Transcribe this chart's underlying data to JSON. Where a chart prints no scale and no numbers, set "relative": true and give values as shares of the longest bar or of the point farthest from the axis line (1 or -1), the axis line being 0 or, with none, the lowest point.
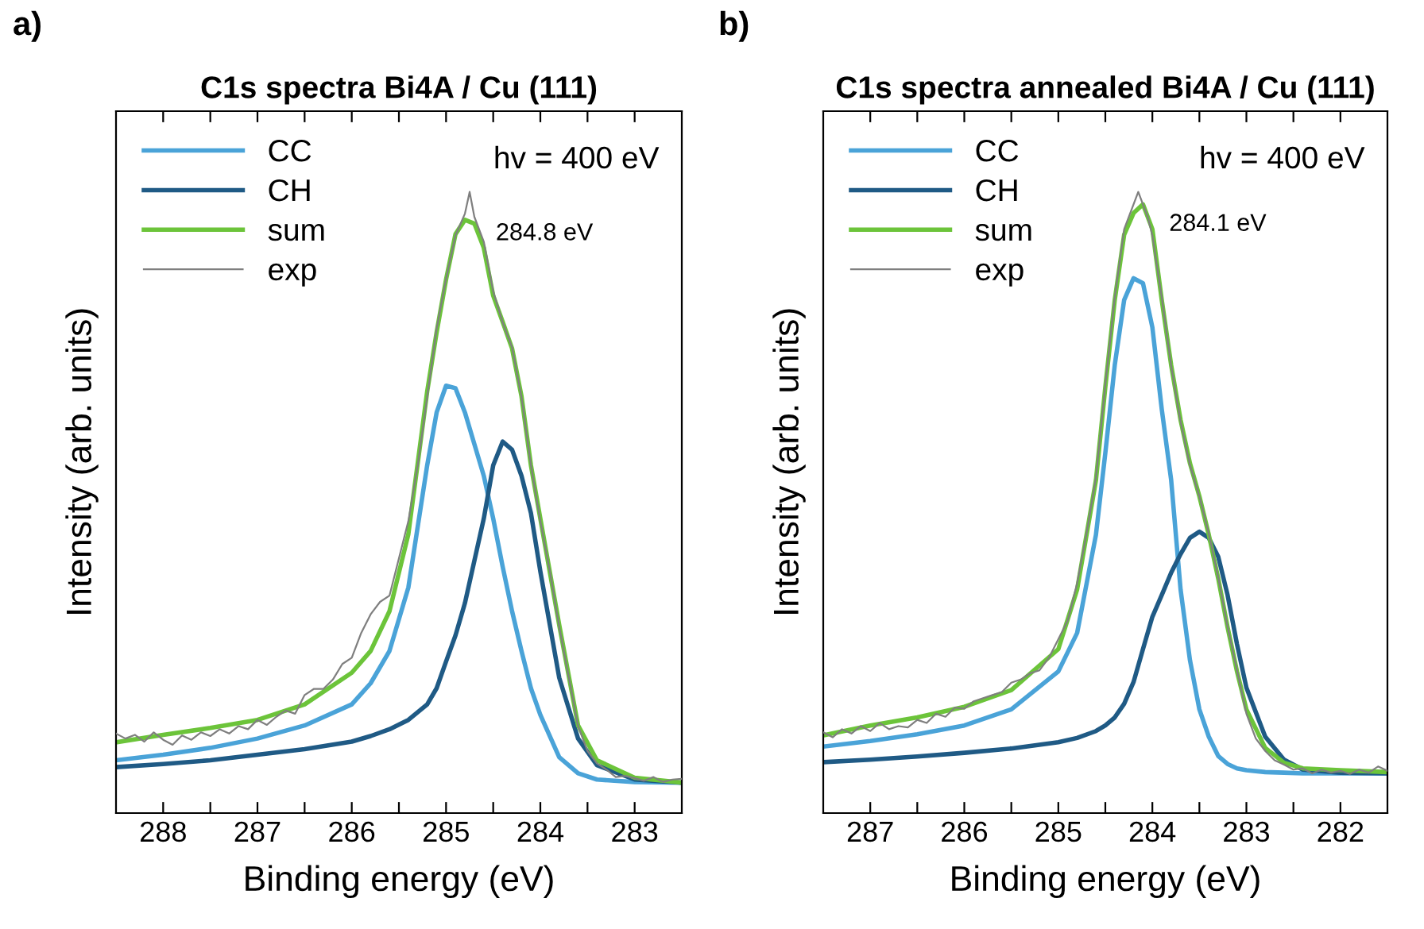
{
  "chart_data": [
    {
      "type": "line",
      "title": "C1s spectra Bi4A / Cu (111)",
      "xlabel": "Binding energy (eV)",
      "ylabel": "Intensity (arb. units)",
      "relative": true,
      "legend": "top left",
      "grid": false,
      "marker": "none",
      "line_style": "solid",
      "tick_labels": "x",
      "xlim": [
        288.5,
        282.5
      ],
      "xticks": [
        288,
        {
          "value": 287.5,
          "label": null
        },
        287,
        {
          "value": 286.5,
          "label": null
        },
        286,
        {
          "value": 285.5,
          "label": null
        },
        285,
        {
          "value": 284.5,
          "label": null
        },
        284,
        {
          "value": 283.5,
          "label": null
        },
        283
      ],
      "annotations": [
        "a)",
        "hv = 400 eV",
        {
          "text": "284.8 eV",
          "x": 284.8,
          "y": 0.965
        }
      ],
      "series": [
        {
          "name": "CC",
          "color": "#4aa3d8",
          "x": [
            288.5,
            288.0,
            287.5,
            287.0,
            286.5,
            286.0,
            285.8,
            285.6,
            285.4,
            285.2,
            285.1,
            285.0,
            284.9,
            284.8,
            284.7,
            284.6,
            284.5,
            284.4,
            284.3,
            284.2,
            284.1,
            284.0,
            283.8,
            283.6,
            283.4,
            283.0,
            282.5
          ],
          "values": [
            0.085,
            0.094,
            0.105,
            0.12,
            0.141,
            0.175,
            0.209,
            0.261,
            0.363,
            0.56,
            0.645,
            0.688,
            0.684,
            0.645,
            0.594,
            0.543,
            0.474,
            0.397,
            0.325,
            0.261,
            0.201,
            0.158,
            0.09,
            0.064,
            0.054,
            0.05,
            0.049
          ]
        },
        {
          "name": "CH",
          "color": "#1f5a85",
          "x": [
            288.5,
            288.0,
            287.5,
            287.0,
            286.5,
            286.0,
            285.8,
            285.6,
            285.4,
            285.2,
            285.1,
            285.0,
            284.9,
            284.8,
            284.7,
            284.6,
            284.5,
            284.4,
            284.3,
            284.2,
            284.1,
            284.0,
            283.8,
            283.6,
            283.4,
            283.0,
            282.5
          ],
          "values": [
            0.074,
            0.079,
            0.085,
            0.094,
            0.103,
            0.115,
            0.124,
            0.135,
            0.15,
            0.175,
            0.201,
            0.244,
            0.286,
            0.338,
            0.406,
            0.474,
            0.56,
            0.598,
            0.585,
            0.543,
            0.483,
            0.389,
            0.218,
            0.12,
            0.077,
            0.054,
            0.049
          ]
        },
        {
          "name": "sum",
          "color": "#6cc43a",
          "x": [
            288.5,
            288.0,
            287.5,
            287.0,
            286.5,
            286.0,
            285.8,
            285.6,
            285.4,
            285.2,
            285.1,
            285.0,
            284.9,
            284.8,
            284.7,
            284.6,
            284.5,
            284.4,
            284.3,
            284.2,
            284.1,
            284.0,
            283.8,
            283.6,
            283.4,
            283.0,
            282.5
          ],
          "values": [
            0.114,
            0.126,
            0.137,
            0.15,
            0.175,
            0.226,
            0.261,
            0.325,
            0.449,
            0.679,
            0.774,
            0.859,
            0.932,
            0.955,
            0.949,
            0.91,
            0.833,
            0.791,
            0.748,
            0.671,
            0.56,
            0.474,
            0.303,
            0.141,
            0.085,
            0.057,
            0.049
          ]
        },
        {
          "name": "exp",
          "color": "#7f7f7f",
          "x": [
            288.5,
            288.4,
            288.3,
            288.2,
            288.1,
            288.0,
            287.9,
            287.8,
            287.7,
            287.6,
            287.5,
            287.4,
            287.3,
            287.2,
            287.1,
            287.0,
            286.9,
            286.8,
            286.7,
            286.6,
            286.5,
            286.4,
            286.3,
            286.2,
            286.1,
            286.0,
            285.9,
            285.8,
            285.7,
            285.6,
            285.5,
            285.4,
            285.3,
            285.2,
            285.1,
            285.0,
            284.9,
            284.8,
            284.75,
            284.7,
            284.6,
            284.5,
            284.4,
            284.3,
            284.2,
            284.1,
            284.0,
            283.9,
            283.8,
            283.7,
            283.6,
            283.5,
            283.4,
            283.3,
            283.2,
            283.1,
            283.0,
            282.9,
            282.8,
            282.7,
            282.6,
            282.5
          ],
          "values": [
            0.128,
            0.12,
            0.126,
            0.115,
            0.13,
            0.118,
            0.11,
            0.125,
            0.118,
            0.13,
            0.124,
            0.135,
            0.128,
            0.14,
            0.135,
            0.15,
            0.142,
            0.155,
            0.165,
            0.16,
            0.19,
            0.2,
            0.2,
            0.215,
            0.24,
            0.25,
            0.29,
            0.32,
            0.34,
            0.35,
            0.41,
            0.47,
            0.56,
            0.67,
            0.78,
            0.86,
            0.93,
            0.965,
            1.0,
            0.96,
            0.92,
            0.84,
            0.79,
            0.75,
            0.67,
            0.56,
            0.47,
            0.39,
            0.3,
            0.22,
            0.14,
            0.1,
            0.08,
            0.07,
            0.058,
            0.06,
            0.056,
            0.052,
            0.058,
            0.05,
            0.054,
            0.055
          ]
        }
      ]
    },
    {
      "type": "line",
      "title": "C1s spectra annealed Bi4A / Cu (111)",
      "xlabel": "Binding energy (eV)",
      "ylabel": "Intensity (arb. units)",
      "relative": true,
      "legend": "top left",
      "grid": false,
      "marker": "none",
      "line_style": "solid",
      "tick_labels": "x",
      "xlim": [
        287.5,
        281.5
      ],
      "xticks": [
        287,
        {
          "value": 286.5,
          "label": null
        },
        286,
        {
          "value": 285.5,
          "label": null
        },
        285,
        {
          "value": 284.5,
          "label": null
        },
        284,
        {
          "value": 283.5,
          "label": null
        },
        283,
        {
          "value": 282.5,
          "label": null
        },
        282
      ],
      "annotations": [
        "b)",
        "hv = 400 eV",
        {
          "text": "284.1 eV",
          "x": 284.15,
          "y": 0.98
        }
      ],
      "series": [
        {
          "name": "CC",
          "color": "#4aa3d8",
          "x": [
            287.5,
            287.0,
            286.5,
            286.0,
            285.5,
            285.0,
            284.8,
            284.6,
            284.5,
            284.4,
            284.3,
            284.2,
            284.1,
            284.0,
            283.9,
            283.8,
            283.7,
            283.6,
            283.5,
            283.4,
            283.3,
            283.2,
            283.1,
            283.0,
            282.8,
            282.6,
            282.4,
            282.0,
            281.5
          ],
          "values": [
            0.107,
            0.116,
            0.127,
            0.141,
            0.167,
            0.228,
            0.29,
            0.448,
            0.58,
            0.721,
            0.826,
            0.861,
            0.853,
            0.782,
            0.65,
            0.536,
            0.36,
            0.246,
            0.167,
            0.123,
            0.092,
            0.079,
            0.072,
            0.069,
            0.066,
            0.065,
            0.064,
            0.064,
            0.064
          ]
        },
        {
          "name": "CH",
          "color": "#1f5a85",
          "x": [
            287.5,
            287.0,
            286.5,
            286.0,
            285.5,
            285.0,
            284.8,
            284.6,
            284.5,
            284.4,
            284.3,
            284.2,
            284.1,
            284.0,
            283.9,
            283.8,
            283.7,
            283.6,
            283.5,
            283.4,
            283.3,
            283.2,
            283.1,
            283.0,
            282.8,
            282.6,
            282.4,
            282.0,
            281.5
          ],
          "values": [
            0.082,
            0.086,
            0.091,
            0.097,
            0.104,
            0.114,
            0.121,
            0.132,
            0.141,
            0.154,
            0.176,
            0.211,
            0.264,
            0.316,
            0.351,
            0.387,
            0.417,
            0.443,
            0.453,
            0.443,
            0.413,
            0.351,
            0.272,
            0.202,
            0.123,
            0.086,
            0.07,
            0.065,
            0.064
          ]
        },
        {
          "name": "sum",
          "color": "#6cc43a",
          "x": [
            287.5,
            287.0,
            286.5,
            286.0,
            285.5,
            285.0,
            284.8,
            284.6,
            284.5,
            284.4,
            284.3,
            284.2,
            284.1,
            284.0,
            283.9,
            283.8,
            283.7,
            283.6,
            283.5,
            283.4,
            283.3,
            283.2,
            283.1,
            283.0,
            282.8,
            282.6,
            282.4,
            282.0,
            281.5
          ],
          "values": [
            0.125,
            0.141,
            0.154,
            0.171,
            0.198,
            0.264,
            0.36,
            0.536,
            0.686,
            0.826,
            0.931,
            0.966,
            0.98,
            0.94,
            0.826,
            0.721,
            0.633,
            0.563,
            0.51,
            0.448,
            0.378,
            0.299,
            0.228,
            0.167,
            0.105,
            0.081,
            0.072,
            0.069,
            0.066
          ]
        },
        {
          "name": "exp",
          "color": "#7f7f7f",
          "x": [
            287.5,
            287.4,
            287.3,
            287.2,
            287.1,
            287.0,
            286.9,
            286.8,
            286.7,
            286.6,
            286.5,
            286.4,
            286.3,
            286.2,
            286.1,
            286.0,
            285.9,
            285.8,
            285.7,
            285.6,
            285.5,
            285.4,
            285.3,
            285.2,
            285.1,
            285.0,
            284.9,
            284.8,
            284.7,
            284.6,
            284.5,
            284.4,
            284.3,
            284.15,
            284.05,
            284.0,
            283.9,
            283.8,
            283.7,
            283.6,
            283.5,
            283.4,
            283.3,
            283.2,
            283.1,
            283.0,
            282.9,
            282.8,
            282.7,
            282.6,
            282.5,
            282.4,
            282.3,
            282.2,
            282.1,
            282.0,
            281.9,
            281.8,
            281.7,
            281.6,
            281.5
          ],
          "values": [
            0.13,
            0.122,
            0.135,
            0.128,
            0.14,
            0.132,
            0.145,
            0.135,
            0.14,
            0.138,
            0.15,
            0.145,
            0.16,
            0.155,
            0.17,
            0.168,
            0.18,
            0.185,
            0.19,
            0.195,
            0.21,
            0.215,
            0.225,
            0.23,
            0.25,
            0.28,
            0.31,
            0.37,
            0.45,
            0.54,
            0.69,
            0.83,
            0.94,
            1.0,
            0.96,
            0.93,
            0.83,
            0.72,
            0.63,
            0.56,
            0.51,
            0.45,
            0.38,
            0.3,
            0.23,
            0.16,
            0.12,
            0.1,
            0.085,
            0.078,
            0.07,
            0.072,
            0.064,
            0.07,
            0.065,
            0.068,
            0.063,
            0.07,
            0.065,
            0.075,
            0.068
          ]
        }
      ]
    }
  ]
}
